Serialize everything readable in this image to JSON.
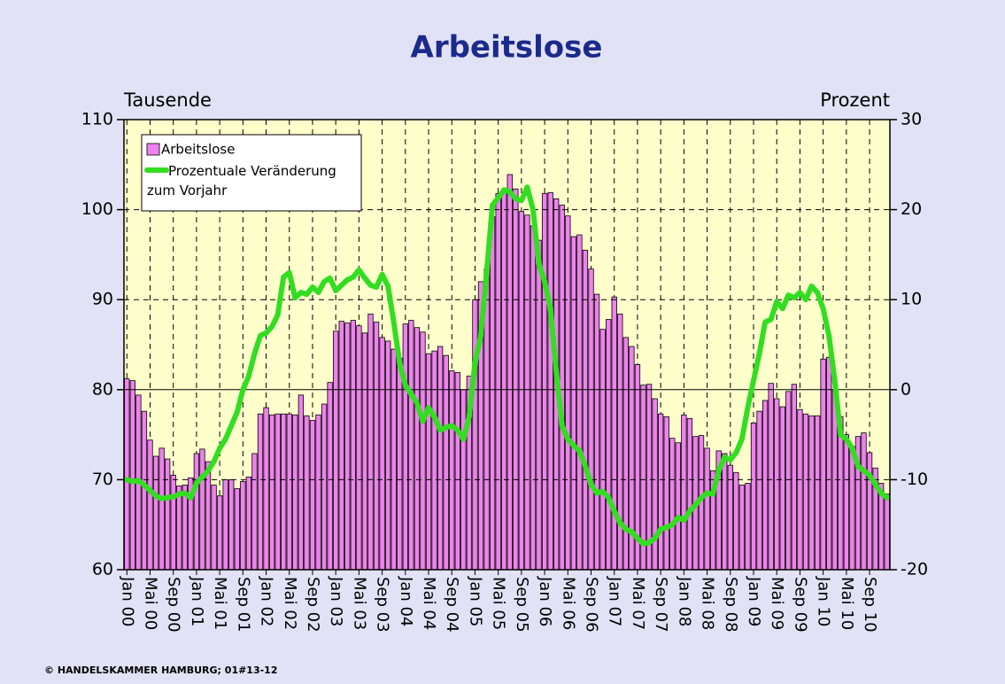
{
  "chart_data": {
    "type": "bar-line",
    "title": "Arbeitslose",
    "y_axis_label": "Tausende",
    "y2_axis_label": "Prozent",
    "footer": "© HANDELSKAMMER HAMBURG;  01#13-12",
    "categories": [
      "Jan 00",
      null,
      null,
      null,
      "Mai 00",
      null,
      null,
      null,
      "Sep 00",
      null,
      null,
      null,
      "Jan 01",
      null,
      null,
      null,
      "Mai 01",
      null,
      null,
      null,
      "Sep 01",
      null,
      null,
      null,
      "Jan 02",
      null,
      null,
      null,
      "Mai 02",
      null,
      null,
      null,
      "Sep 02",
      null,
      null,
      null,
      "Jan 03",
      null,
      null,
      null,
      "Mai 03",
      null,
      null,
      null,
      "Sep 03",
      null,
      null,
      null,
      "Jan 04",
      null,
      null,
      null,
      "Mai 04",
      null,
      null,
      null,
      "Sep 04",
      null,
      null,
      null,
      "Jan 05",
      null,
      null,
      null,
      "Mai 05",
      null,
      null,
      null,
      "Sep 05",
      null,
      null,
      null,
      "Jan 06",
      null,
      null,
      null,
      "Mai 06",
      null,
      null,
      null,
      "Sep 06",
      null,
      null,
      null,
      "Jan 07",
      null,
      null,
      null,
      "Mai 07",
      null,
      null,
      null,
      "Sep 07",
      null,
      null,
      null,
      "Jan 08",
      null,
      null,
      null,
      "Mai 08",
      null,
      null,
      null,
      "Sep 08",
      null,
      null,
      null,
      "Jan 09",
      null,
      null,
      null,
      "Mai 09",
      null,
      null,
      null,
      "Sep 09",
      null,
      null,
      null,
      "Jan 10",
      null,
      null,
      null,
      "Mai 10",
      null,
      null,
      null,
      "Sep 10",
      null,
      null,
      null
    ],
    "series": [
      {
        "name": "Arbeitslose",
        "type": "bar",
        "color": "#ee82ee",
        "axis": "y",
        "values": [
          81.2,
          81,
          79.4,
          77.6,
          74.4,
          72.6,
          73.5,
          72.3,
          70.5,
          69.3,
          69.4,
          70.2,
          72.9,
          73.4,
          72,
          69.4,
          68.2,
          70,
          70,
          69,
          69.8,
          70.3,
          72.9,
          77.3,
          78,
          77.2,
          77.3,
          77.3,
          77.3,
          77.2,
          79.4,
          77.1,
          76.6,
          77.2,
          78.4,
          80.8,
          86.5,
          87.6,
          87.4,
          87.7,
          87.1,
          86.3,
          88.4,
          87.5,
          85.8,
          85.4,
          84.5,
          83.5,
          87.3,
          87.7,
          86.9,
          86.4,
          84,
          84.3,
          84.8,
          83.8,
          82.1,
          81.9,
          80,
          81.5,
          90,
          92,
          93.4,
          99.2,
          101.8,
          102.1,
          103.9,
          102.3,
          99.8,
          99.4,
          98.2,
          96.6,
          101.8,
          101.9,
          101.2,
          100.5,
          99.3,
          97,
          97.2,
          95.5,
          93.4,
          90.6,
          86.7,
          87.8,
          90.3,
          88.4,
          85.8,
          84.8,
          82.8,
          80.5,
          80.6,
          79,
          77.3,
          77,
          74.6,
          74.1,
          77.2,
          76.8,
          74.8,
          74.9,
          73.5,
          71,
          73.2,
          72.9,
          71.6,
          70.8,
          69.4,
          69.6,
          76.3,
          77.6,
          78.8,
          80.7,
          79,
          78.1,
          79.8,
          80.6,
          77.8,
          77.3,
          77.1,
          77.1,
          83.4,
          83.6,
          80,
          77,
          75,
          73.7,
          74.8,
          75.2,
          73,
          71.3,
          69.6,
          68.4
        ]
      },
      {
        "name": "Prozentuale Veränderung zum Vorjahr",
        "type": "line",
        "color": "#33dd22",
        "axis": "y2",
        "values": [
          -10,
          -10.2,
          -10.1,
          -10.6,
          -11.2,
          -11.8,
          -12.1,
          -12,
          -11.9,
          -11.6,
          -11.5,
          -12,
          -10.4,
          -9.7,
          -9,
          -8,
          -6.5,
          -5.5,
          -4,
          -2.5,
          0,
          1.5,
          4,
          6,
          6.3,
          7,
          8.3,
          12.5,
          13,
          10.2,
          10.8,
          10.6,
          11.4,
          10.8,
          12,
          12.4,
          11,
          11.6,
          12.2,
          12.5,
          13.3,
          12.4,
          11.6,
          11.4,
          12.8,
          11.5,
          7.5,
          3,
          0.5,
          -0.5,
          -1.5,
          -3.5,
          -2,
          -3,
          -4.5,
          -4.2,
          -4,
          -4.5,
          -5.5,
          -3,
          3,
          6,
          13,
          20.5,
          21.3,
          22.2,
          22,
          21.2,
          21,
          22.5,
          20,
          14,
          12,
          9,
          2,
          -4,
          -5.5,
          -6.2,
          -6.8,
          -8.5,
          -10.5,
          -11.5,
          -11.3,
          -12,
          -13.5,
          -14.8,
          -15.5,
          -15.8,
          -16.5,
          -17.1,
          -17,
          -16.5,
          -15.5,
          -15.3,
          -15,
          -14.2,
          -14.5,
          -13.5,
          -12.8,
          -12,
          -11.5,
          -11.6,
          -9,
          -7.5,
          -7.8,
          -7,
          -5.5,
          -2,
          1,
          4,
          7.5,
          7.8,
          9.8,
          9,
          10.5,
          10.2,
          10.8,
          10,
          11.5,
          10.8,
          9,
          6,
          1,
          -5,
          -5.5,
          -6.5,
          -8.5,
          -9,
          -9.5,
          -10.5,
          -11.5,
          -12
        ]
      }
    ],
    "ylim": [
      60,
      110
    ],
    "yticks": [
      60,
      70,
      80,
      90,
      100,
      110
    ],
    "y2lim": [
      -20,
      30
    ],
    "y2ticks": [
      -20,
      -10,
      0,
      10,
      20,
      30
    ],
    "grid": true,
    "legend": "upper left"
  }
}
